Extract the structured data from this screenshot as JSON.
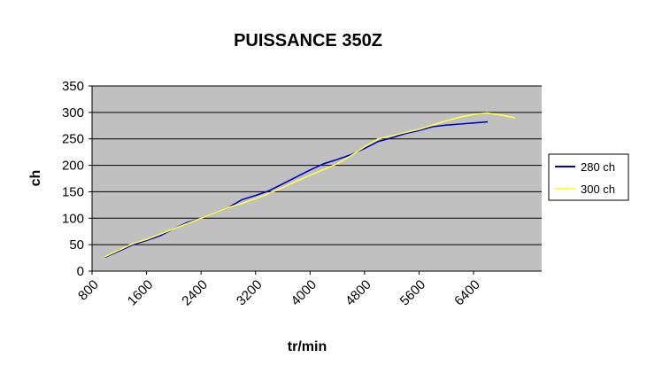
{
  "colors": {
    "plot_bg": "#c0c0c0",
    "grid": "#000000",
    "series_280": "#0000cc",
    "series_300": "#ffff44"
  },
  "chart_data": {
    "type": "line",
    "title": "PUISSANCE 350Z",
    "xlabel": "tr/min",
    "ylabel": "ch",
    "xlim": [
      800,
      7400
    ],
    "ylim": [
      0,
      350
    ],
    "x_ticks": [
      800,
      1600,
      2400,
      3200,
      4000,
      4800,
      5600,
      6400
    ],
    "y_ticks": [
      0,
      50,
      100,
      150,
      200,
      250,
      300,
      350
    ],
    "grid": true,
    "legend_position": "right",
    "series": [
      {
        "name": "280 ch",
        "color": "#0000cc",
        "points": [
          [
            1000,
            27
          ],
          [
            1200,
            38
          ],
          [
            1400,
            50
          ],
          [
            1600,
            58
          ],
          [
            1800,
            67
          ],
          [
            2000,
            80
          ],
          [
            2200,
            92
          ],
          [
            2400,
            100
          ],
          [
            2600,
            110
          ],
          [
            2800,
            120
          ],
          [
            3000,
            135
          ],
          [
            3200,
            143
          ],
          [
            3400,
            152
          ],
          [
            3600,
            165
          ],
          [
            3800,
            178
          ],
          [
            4000,
            191
          ],
          [
            4200,
            203
          ],
          [
            4400,
            211
          ],
          [
            4600,
            220
          ],
          [
            4800,
            232
          ],
          [
            5000,
            245
          ],
          [
            5200,
            252
          ],
          [
            5400,
            260
          ],
          [
            5600,
            266
          ],
          [
            5800,
            273
          ],
          [
            6000,
            276
          ],
          [
            6200,
            278
          ],
          [
            6400,
            280
          ],
          [
            6600,
            282
          ]
        ]
      },
      {
        "name": "300 ch",
        "color": "#ffff44",
        "points": [
          [
            1000,
            28
          ],
          [
            1200,
            40
          ],
          [
            1400,
            52
          ],
          [
            1600,
            60
          ],
          [
            1800,
            70
          ],
          [
            2000,
            80
          ],
          [
            2200,
            90
          ],
          [
            2400,
            100
          ],
          [
            2600,
            110
          ],
          [
            2800,
            120
          ],
          [
            3000,
            128
          ],
          [
            3200,
            137
          ],
          [
            3400,
            147
          ],
          [
            3600,
            158
          ],
          [
            3800,
            170
          ],
          [
            4000,
            181
          ],
          [
            4200,
            192
          ],
          [
            4400,
            203
          ],
          [
            4600,
            218
          ],
          [
            4800,
            235
          ],
          [
            5000,
            250
          ],
          [
            5200,
            256
          ],
          [
            5400,
            262
          ],
          [
            5600,
            268
          ],
          [
            5800,
            276
          ],
          [
            6000,
            284
          ],
          [
            6200,
            291
          ],
          [
            6400,
            296
          ],
          [
            6600,
            299
          ],
          [
            6800,
            295
          ],
          [
            7000,
            290
          ]
        ]
      }
    ]
  }
}
